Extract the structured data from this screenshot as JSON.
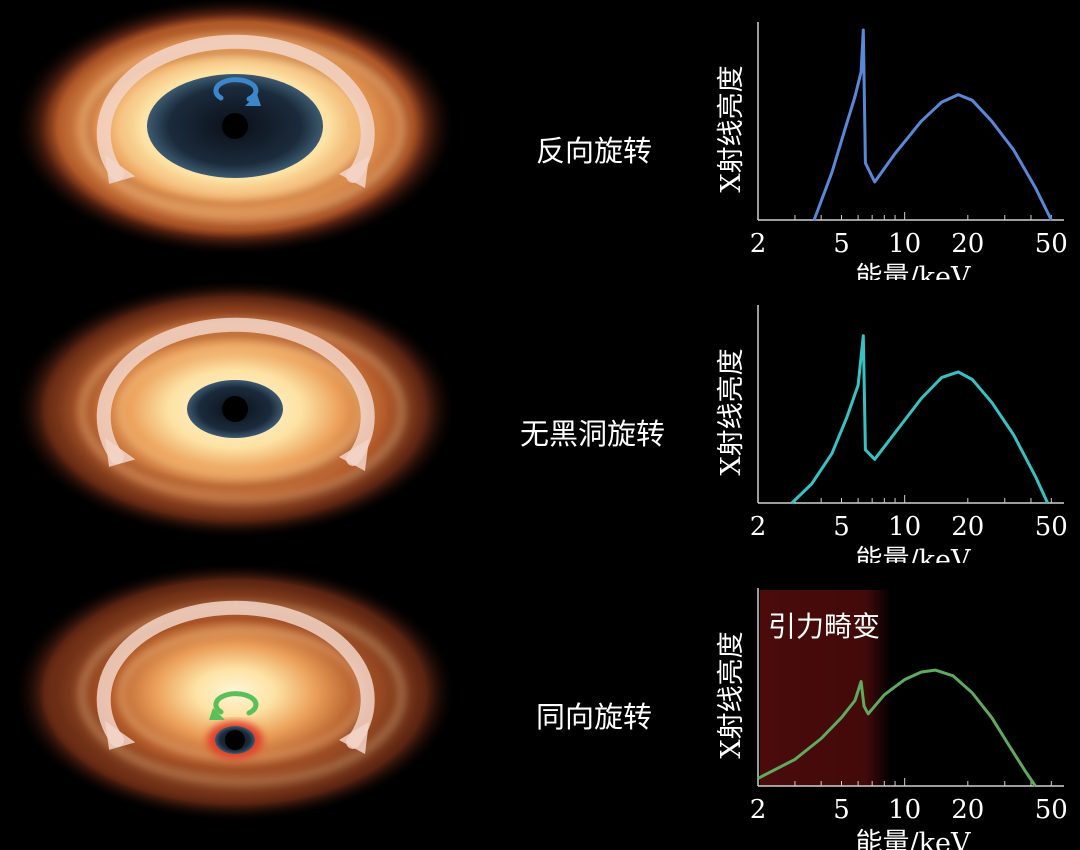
{
  "rows": [
    {
      "label": "反向旋转",
      "disk": "retrograde-spin",
      "spin_arrow_color": "#3b87c9",
      "line_color": "#5a88d8"
    },
    {
      "label": "无黑洞旋转",
      "disk": "no-spin",
      "spin_arrow_color": "",
      "line_color": "#36c2c2"
    },
    {
      "label": "同向旋转",
      "disk": "prograde-spin",
      "spin_arrow_color": "#5bbf5a",
      "line_color": "#5eaa5e"
    }
  ],
  "charts": {
    "ylabel": "X射线亮度",
    "xlabel": "能量/keV",
    "xticks": [
      "2",
      "5",
      "10",
      "20",
      "50"
    ],
    "annotation": "引力畸变",
    "annotation_color": "#4a0b0b"
  },
  "chart_data": [
    {
      "type": "line",
      "scale_x": "log",
      "xlabel": "能量/keV",
      "ylabel": "X射线亮度",
      "xlim": [
        2,
        55
      ],
      "ylim": [
        0,
        1
      ],
      "x": [
        3.7,
        4.5,
        5.2,
        5.8,
        6.2,
        6.35,
        6.5,
        7.2,
        9,
        12,
        15,
        18,
        21,
        26,
        33,
        42,
        50
      ],
      "values": [
        0,
        0.25,
        0.48,
        0.65,
        0.78,
        1.0,
        0.3,
        0.2,
        0.35,
        0.52,
        0.62,
        0.66,
        0.63,
        0.52,
        0.37,
        0.17,
        0
      ]
    },
    {
      "type": "line",
      "scale_x": "log",
      "xlabel": "能量/keV",
      "ylabel": "X射线亮度",
      "xlim": [
        2,
        55
      ],
      "ylim": [
        0,
        1
      ],
      "x": [
        2.9,
        3.6,
        4.5,
        5.3,
        6.0,
        6.35,
        6.5,
        7.2,
        9,
        12,
        15,
        18,
        21,
        26,
        33,
        42,
        48
      ],
      "values": [
        0,
        0.1,
        0.26,
        0.45,
        0.62,
        0.88,
        0.28,
        0.23,
        0.37,
        0.55,
        0.66,
        0.69,
        0.65,
        0.53,
        0.36,
        0.14,
        0
      ]
    },
    {
      "type": "line",
      "scale_x": "log",
      "xlabel": "能量/keV",
      "ylabel": "X射线亮度",
      "xlim": [
        2,
        55
      ],
      "ylim": [
        0,
        1
      ],
      "x": [
        2,
        3,
        4,
        5,
        5.8,
        6.2,
        6.4,
        6.7,
        8,
        10,
        12,
        14,
        17,
        21,
        26,
        32,
        38,
        42
      ],
      "values": [
        0.04,
        0.14,
        0.25,
        0.36,
        0.45,
        0.55,
        0.42,
        0.38,
        0.48,
        0.56,
        0.6,
        0.61,
        0.58,
        0.49,
        0.36,
        0.2,
        0.07,
        0
      ]
    }
  ]
}
